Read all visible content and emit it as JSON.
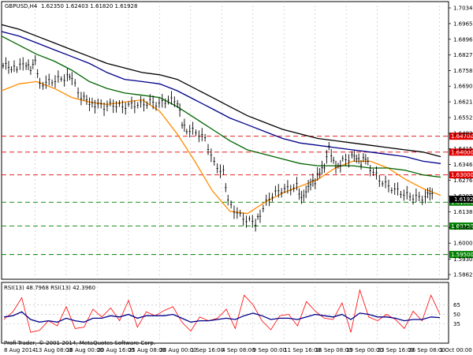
{
  "header": {
    "symbol": "GBPUSD,H4",
    "ohlc": "1.62350 1.62403 1.61820 1.61928"
  },
  "rsi_header": "RSI(13) 48.7968 RSI(13) 42.3960",
  "copyright": "Profi-Trader, © 2001-2014, MetaQuotes Software Corp.",
  "colors": {
    "price": "#000000",
    "ma_fast": "#ff8c00",
    "ma_mid": "#006400",
    "ma_blue": "#00008b",
    "ma_slow": "#000000",
    "resistance": "#e00000",
    "support": "#008000",
    "rsi_fast": "#ff0000",
    "rsi_slow": "#00008b",
    "grid": "#c0c0c0"
  },
  "chart_data": {
    "type": "line",
    "title": "GBPUSD,H4",
    "y_axis_ticks": [
      "1.70340",
      "1.69650",
      "1.68960",
      "1.68270",
      "1.67580",
      "1.66900",
      "1.66210",
      "1.65520",
      "1.64830",
      "1.64150",
      "1.63460",
      "1.62760",
      "1.62070",
      "1.61380",
      "1.60690",
      "1.60000",
      "1.59300",
      "1.58620"
    ],
    "ylim": [
      1.5862,
      1.7034
    ],
    "x_axis_labels": [
      "8 Aug 2014",
      "13 Aug 08:00",
      "18 Aug 00:00",
      "20 Aug 16:00",
      "25 Aug 08:00",
      "28 Aug 00:00",
      "1 Sep 16:00",
      "4 Sep 08:00",
      "9 Sep 00:00",
      "11 Sep 16:00",
      "16 Sep 08:00",
      "19 Sep 00:00",
      "23 Sep 16:00",
      "26 Sep 08:00",
      "1 Oct 00:00"
    ],
    "levels": [
      {
        "name": "resistance",
        "value": "1.64700",
        "price": 1.647
      },
      {
        "name": "resistance",
        "value": "1.64000",
        "price": 1.64
      },
      {
        "name": "resistance",
        "value": "1.63000",
        "price": 1.63
      },
      {
        "name": "support",
        "value": "1.61800",
        "price": 1.618
      },
      {
        "name": "support",
        "value": "1.60750",
        "price": 1.6075
      },
      {
        "name": "support",
        "value": "1.59500",
        "price": 1.595
      }
    ],
    "current_price": "1.61928",
    "current_price_value": 1.61928,
    "price_series": [
      {
        "x": 0,
        "y": 1.678
      },
      {
        "x": 3,
        "y": 1.677
      },
      {
        "x": 5,
        "y": 1.679
      },
      {
        "x": 6,
        "y": 1.677
      },
      {
        "x": 7,
        "y": 1.681
      },
      {
        "x": 8,
        "y": 1.67
      },
      {
        "x": 10,
        "y": 1.671
      },
      {
        "x": 12,
        "y": 1.672
      },
      {
        "x": 14,
        "y": 1.673
      },
      {
        "x": 15,
        "y": 1.672
      },
      {
        "x": 17,
        "y": 1.664
      },
      {
        "x": 20,
        "y": 1.661
      },
      {
        "x": 22,
        "y": 1.66
      },
      {
        "x": 24,
        "y": 1.661
      },
      {
        "x": 26,
        "y": 1.66
      },
      {
        "x": 28,
        "y": 1.661
      },
      {
        "x": 30,
        "y": 1.661
      },
      {
        "x": 32,
        "y": 1.662
      },
      {
        "x": 34,
        "y": 1.661
      },
      {
        "x": 36,
        "y": 1.663
      },
      {
        "x": 38,
        "y": 1.662
      },
      {
        "x": 39,
        "y": 1.653
      },
      {
        "x": 40,
        "y": 1.65
      },
      {
        "x": 42,
        "y": 1.649
      },
      {
        "x": 44,
        "y": 1.646
      },
      {
        "x": 46,
        "y": 1.635
      },
      {
        "x": 48,
        "y": 1.631
      },
      {
        "x": 49,
        "y": 1.618
      },
      {
        "x": 51,
        "y": 1.613
      },
      {
        "x": 53,
        "y": 1.61
      },
      {
        "x": 55,
        "y": 1.609
      },
      {
        "x": 56,
        "y": 1.613
      },
      {
        "x": 58,
        "y": 1.62
      },
      {
        "x": 60,
        "y": 1.623
      },
      {
        "x": 62,
        "y": 1.624
      },
      {
        "x": 64,
        "y": 1.625
      },
      {
        "x": 65,
        "y": 1.619
      },
      {
        "x": 66,
        "y": 1.622
      },
      {
        "x": 67,
        "y": 1.626
      },
      {
        "x": 68,
        "y": 1.627
      },
      {
        "x": 69,
        "y": 1.632
      },
      {
        "x": 70,
        "y": 1.634
      },
      {
        "x": 71,
        "y": 1.643
      },
      {
        "x": 72,
        "y": 1.636
      },
      {
        "x": 73,
        "y": 1.633
      },
      {
        "x": 74,
        "y": 1.636
      },
      {
        "x": 76,
        "y": 1.638
      },
      {
        "x": 77,
        "y": 1.637
      },
      {
        "x": 78,
        "y": 1.635
      },
      {
        "x": 79,
        "y": 1.638
      },
      {
        "x": 80,
        "y": 1.633
      },
      {
        "x": 82,
        "y": 1.628
      },
      {
        "x": 84,
        "y": 1.625
      },
      {
        "x": 86,
        "y": 1.623
      },
      {
        "x": 88,
        "y": 1.621
      },
      {
        "x": 90,
        "y": 1.62
      },
      {
        "x": 92,
        "y": 1.62
      },
      {
        "x": 93,
        "y": 1.622
      },
      {
        "x": 94,
        "y": 1.619
      }
    ],
    "series": [
      {
        "name": "ma_fast",
        "values": [
          1.667,
          1.67,
          1.671,
          1.668,
          1.664,
          1.662,
          1.661,
          1.662,
          1.663,
          1.658,
          1.648,
          1.636,
          1.623,
          1.614,
          1.613,
          1.618,
          1.622,
          1.625,
          1.628,
          1.633,
          1.636,
          1.636,
          1.633,
          1.628,
          1.624,
          1.621
        ]
      },
      {
        "name": "ma_mid",
        "values": [
          1.691,
          1.687,
          1.683,
          1.68,
          1.676,
          1.671,
          1.668,
          1.666,
          1.665,
          1.664,
          1.66,
          1.655,
          1.65,
          1.645,
          1.641,
          1.639,
          1.637,
          1.635,
          1.634,
          1.634,
          1.634,
          1.633,
          1.633,
          1.632,
          1.63,
          1.629
        ]
      },
      {
        "name": "ma_blue",
        "values": [
          1.693,
          1.691,
          1.688,
          1.685,
          1.682,
          1.679,
          1.675,
          1.672,
          1.671,
          1.67,
          1.667,
          1.663,
          1.659,
          1.655,
          1.652,
          1.649,
          1.646,
          1.644,
          1.643,
          1.642,
          1.641,
          1.64,
          1.639,
          1.638,
          1.636,
          1.635
        ]
      },
      {
        "name": "ma_slow",
        "values": [
          1.696,
          1.694,
          1.691,
          1.688,
          1.685,
          1.682,
          1.679,
          1.677,
          1.675,
          1.674,
          1.672,
          1.668,
          1.664,
          1.66,
          1.656,
          1.653,
          1.65,
          1.648,
          1.646,
          1.645,
          1.644,
          1.643,
          1.642,
          1.641,
          1.64,
          1.638
        ]
      }
    ],
    "rsi_levels": [
      65,
      50,
      35
    ],
    "rsi_fast": [
      42,
      54,
      76,
      22,
      25,
      40,
      32,
      62,
      28,
      30,
      58,
      46,
      60,
      40,
      72,
      30,
      54,
      48,
      56,
      62,
      38,
      24,
      46,
      40,
      44,
      58,
      28,
      80,
      65,
      40,
      26,
      48,
      50,
      32,
      70,
      55,
      44,
      42,
      68,
      22,
      88,
      46,
      40,
      50,
      42,
      28,
      55,
      40,
      80,
      50
    ],
    "rsi_slow": [
      46,
      48,
      54,
      42,
      38,
      40,
      38,
      44,
      40,
      38,
      44,
      44,
      48,
      46,
      50,
      44,
      48,
      48,
      48,
      50,
      44,
      38,
      40,
      40,
      42,
      44,
      42,
      48,
      52,
      48,
      42,
      44,
      44,
      42,
      46,
      50,
      48,
      46,
      50,
      42,
      52,
      50,
      46,
      46,
      44,
      40,
      42,
      42,
      46,
      45
    ]
  }
}
